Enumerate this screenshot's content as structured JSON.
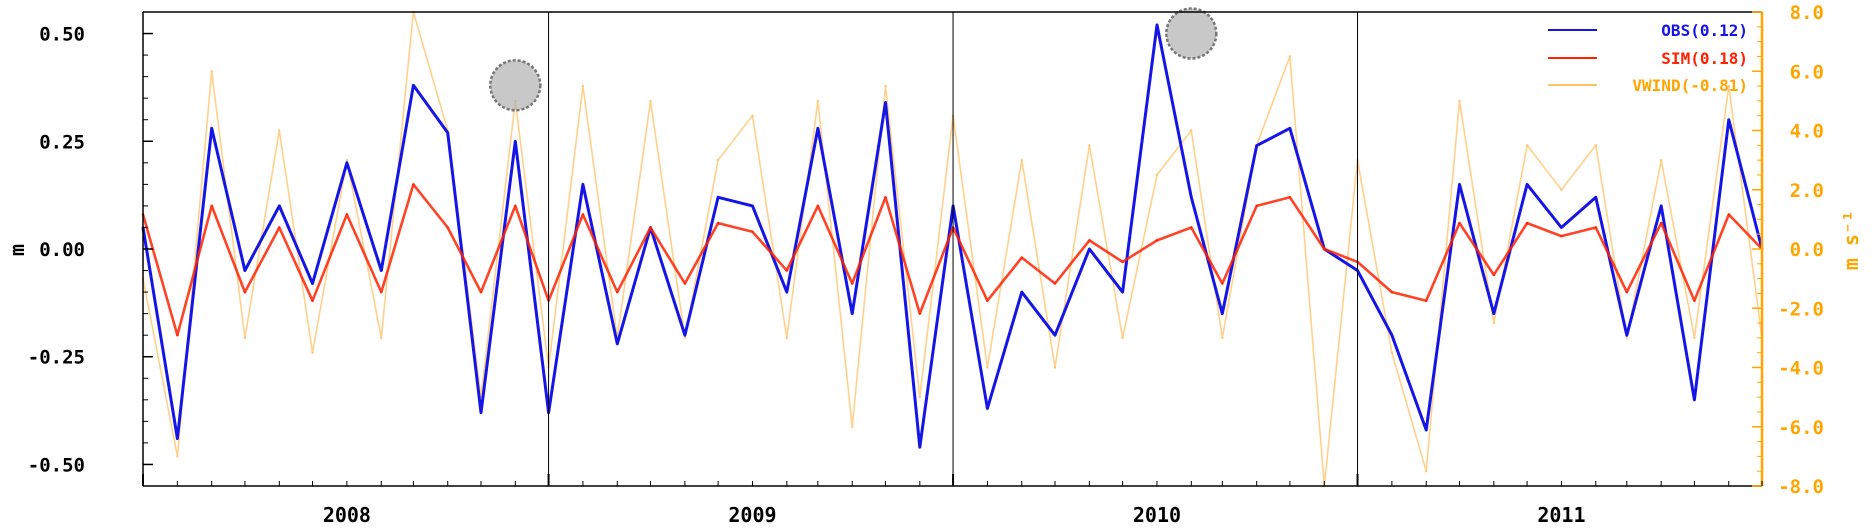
{
  "chart_data": {
    "type": "line",
    "title": "",
    "xlabel": "",
    "ylabel": "m",
    "y2label": "m s⁻¹",
    "x_range": [
      "2007-07-01",
      "2011-07-01"
    ],
    "year_labels": [
      "2008",
      "2009",
      "2010",
      "2011"
    ],
    "ylim": [
      -0.55,
      0.55
    ],
    "y2lim": [
      -8.0,
      8.0
    ],
    "yticks": [
      "-0.50",
      "-0.25",
      "0.00",
      "0.25",
      "0.50"
    ],
    "y2ticks": [
      "-8.0",
      "-6.0",
      "-4.0",
      "-2.0",
      "0.0",
      "2.0",
      "4.0",
      "6.0",
      "8.0"
    ],
    "grid": false,
    "legend_position": "top-right",
    "colors": {
      "obs": "#1515e6",
      "sim": "#ff2200",
      "vwind": "#ffc266",
      "right_axis": "#ffa500"
    },
    "series": [
      {
        "name": "OBS(0.12)",
        "axis": "left",
        "color": "#1515e6",
        "x": [
          "2007-07-01",
          "2007-08-01",
          "2007-09-01",
          "2007-10-01",
          "2007-11-01",
          "2007-12-01",
          "2008-01-01",
          "2008-02-01",
          "2008-03-01",
          "2008-04-01",
          "2008-05-01",
          "2008-06-01",
          "2008-07-01",
          "2008-08-01",
          "2008-09-01",
          "2008-10-01",
          "2008-11-01",
          "2008-12-01",
          "2009-01-01",
          "2009-02-01",
          "2009-03-01",
          "2009-04-01",
          "2009-05-01",
          "2009-06-01",
          "2009-07-01",
          "2009-08-01",
          "2009-09-01",
          "2009-10-01",
          "2009-11-01",
          "2009-12-01",
          "2010-01-01",
          "2010-02-01",
          "2010-03-01",
          "2010-04-01",
          "2010-05-01",
          "2010-06-01",
          "2010-07-01",
          "2010-08-01",
          "2010-09-01",
          "2010-10-01",
          "2010-11-01",
          "2010-12-01",
          "2011-01-01",
          "2011-02-01",
          "2011-03-01",
          "2011-04-01",
          "2011-05-01",
          "2011-06-01",
          "2011-07-01"
        ],
        "values": [
          0.05,
          -0.44,
          0.28,
          -0.05,
          0.1,
          -0.08,
          0.2,
          -0.05,
          0.38,
          0.27,
          -0.38,
          0.25,
          -0.38,
          0.15,
          -0.22,
          0.05,
          -0.2,
          0.12,
          0.1,
          -0.1,
          0.28,
          -0.15,
          0.34,
          -0.46,
          0.1,
          -0.37,
          -0.1,
          -0.2,
          0.0,
          -0.1,
          0.52,
          0.12,
          -0.15,
          0.24,
          0.28,
          0.0,
          -0.05,
          -0.2,
          -0.42,
          0.15,
          -0.15,
          0.15,
          0.05,
          0.12,
          -0.2,
          0.1,
          -0.35,
          0.3,
          0.0
        ]
      },
      {
        "name": "SIM(0.18)",
        "axis": "left",
        "color": "#ff2200",
        "x": [
          "2007-07-01",
          "2007-08-01",
          "2007-09-01",
          "2007-10-01",
          "2007-11-01",
          "2007-12-01",
          "2008-01-01",
          "2008-02-01",
          "2008-03-01",
          "2008-04-01",
          "2008-05-01",
          "2008-06-01",
          "2008-07-01",
          "2008-08-01",
          "2008-09-01",
          "2008-10-01",
          "2008-11-01",
          "2008-12-01",
          "2009-01-01",
          "2009-02-01",
          "2009-03-01",
          "2009-04-01",
          "2009-05-01",
          "2009-06-01",
          "2009-07-01",
          "2009-08-01",
          "2009-09-01",
          "2009-10-01",
          "2009-11-01",
          "2009-12-01",
          "2010-01-01",
          "2010-02-01",
          "2010-03-01",
          "2010-04-01",
          "2010-05-01",
          "2010-06-01",
          "2010-07-01",
          "2010-08-01",
          "2010-09-01",
          "2010-10-01",
          "2010-11-01",
          "2010-12-01",
          "2011-01-01",
          "2011-02-01",
          "2011-03-01",
          "2011-04-01",
          "2011-05-01",
          "2011-06-01",
          "2011-07-01"
        ],
        "values": [
          0.08,
          -0.2,
          0.1,
          -0.1,
          0.05,
          -0.12,
          0.08,
          -0.1,
          0.15,
          0.05,
          -0.1,
          0.1,
          -0.12,
          0.08,
          -0.1,
          0.05,
          -0.08,
          0.06,
          0.04,
          -0.05,
          0.1,
          -0.08,
          0.12,
          -0.15,
          0.05,
          -0.12,
          -0.02,
          -0.08,
          0.02,
          -0.03,
          0.02,
          0.05,
          -0.08,
          0.1,
          0.12,
          0.0,
          -0.03,
          -0.1,
          -0.12,
          0.06,
          -0.06,
          0.06,
          0.03,
          0.05,
          -0.1,
          0.06,
          -0.12,
          0.08,
          0.0
        ]
      },
      {
        "name": "VWIND(-0.81)",
        "axis": "right",
        "color": "#ffc266",
        "x": [
          "2007-07-01",
          "2007-08-01",
          "2007-09-01",
          "2007-10-01",
          "2007-11-01",
          "2007-12-01",
          "2008-01-01",
          "2008-02-01",
          "2008-03-01",
          "2008-04-01",
          "2008-05-01",
          "2008-06-01",
          "2008-07-01",
          "2008-08-01",
          "2008-09-01",
          "2008-10-01",
          "2008-11-01",
          "2008-12-01",
          "2009-01-01",
          "2009-02-01",
          "2009-03-01",
          "2009-04-01",
          "2009-05-01",
          "2009-06-01",
          "2009-07-01",
          "2009-08-01",
          "2009-09-01",
          "2009-10-01",
          "2009-11-01",
          "2009-12-01",
          "2010-01-01",
          "2010-02-01",
          "2010-03-01",
          "2010-04-01",
          "2010-05-01",
          "2010-06-01",
          "2010-07-01",
          "2010-08-01",
          "2010-09-01",
          "2010-10-01",
          "2010-11-01",
          "2010-12-01",
          "2011-01-01",
          "2011-02-01",
          "2011-03-01",
          "2011-04-01",
          "2011-05-01",
          "2011-06-01",
          "2011-07-01"
        ],
        "values": [
          -1.0,
          -7.0,
          6.0,
          -3.0,
          4.0,
          -3.5,
          3.0,
          -3.0,
          8.0,
          4.0,
          -5.0,
          5.0,
          -4.0,
          5.5,
          -3.0,
          5.0,
          -3.0,
          3.0,
          4.5,
          -3.0,
          5.0,
          -6.0,
          5.5,
          -5.0,
          4.5,
          -4.0,
          3.0,
          -4.0,
          3.5,
          -3.0,
          2.5,
          4.0,
          -3.0,
          3.5,
          6.5,
          -8.0,
          3.0,
          -3.5,
          -7.5,
          5.0,
          -2.5,
          3.5,
          2.0,
          3.5,
          -3.0,
          3.0,
          -3.0,
          5.5,
          -3.0
        ]
      }
    ],
    "annotations": [
      {
        "type": "circle-marker",
        "x": "2008-06-01",
        "y": 0.38,
        "axis": "left"
      },
      {
        "type": "circle-marker",
        "x": "2010-02-01",
        "y": 0.5,
        "axis": "left"
      }
    ]
  }
}
